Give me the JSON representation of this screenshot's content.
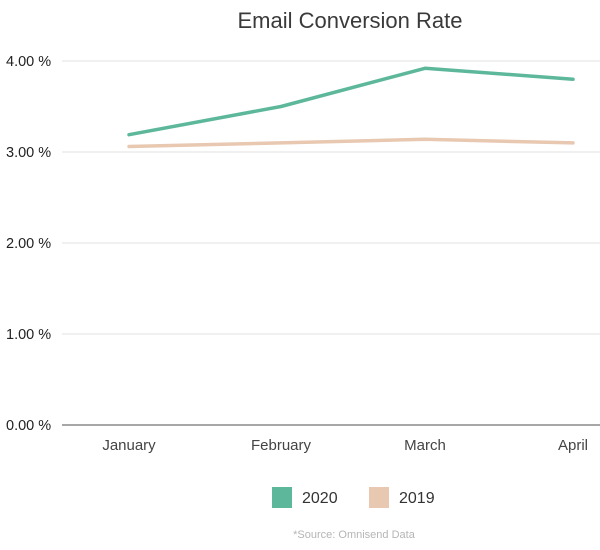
{
  "chart_data": {
    "type": "line",
    "title": "Email Conversion Rate",
    "categories": [
      "January",
      "February",
      "March",
      "April"
    ],
    "ylim": [
      0,
      4
    ],
    "yticks": [
      0,
      1,
      2,
      3,
      4
    ],
    "ytick_labels": [
      "0.00 %",
      "1.00 %",
      "2.00 %",
      "3.00 %",
      "4.00 %"
    ],
    "series": [
      {
        "name": "2020",
        "values": [
          3.19,
          3.5,
          3.92,
          3.8
        ],
        "color": "#5db89b"
      },
      {
        "name": "2019",
        "values": [
          3.06,
          3.1,
          3.14,
          3.1
        ],
        "color": "#e8c8b1"
      }
    ],
    "grid": true,
    "legend_position": "bottom-center",
    "source_note": "*Source: Omnisend Data"
  }
}
